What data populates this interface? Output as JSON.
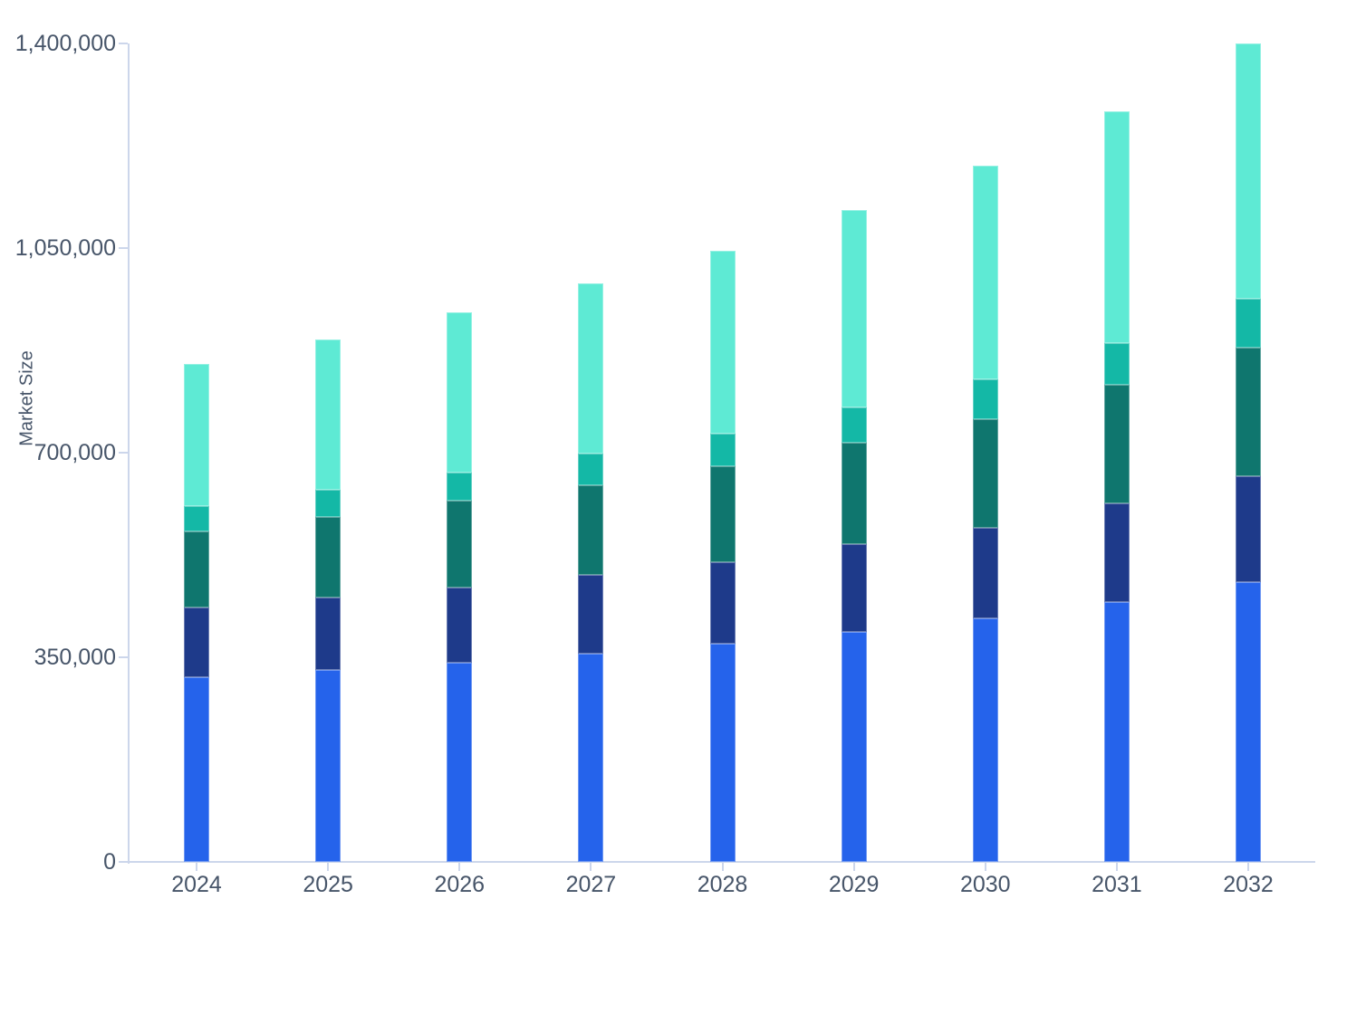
{
  "chart_data": {
    "type": "bar",
    "stacked": true,
    "title": "",
    "xlabel": "",
    "ylabel": "Market Size",
    "categories": [
      "2024",
      "2025",
      "2026",
      "2027",
      "2028",
      "2029",
      "2030",
      "2031",
      "2032"
    ],
    "series": [
      {
        "color": "#2563EB",
        "values": [
          316000,
          328000,
          341000,
          356000,
          373000,
          393000,
          416000,
          444000,
          478000
        ]
      },
      {
        "color": "#1E3A8A",
        "values": [
          119000,
          124000,
          128000,
          135000,
          139000,
          150000,
          156000,
          169000,
          182000
        ]
      },
      {
        "color": "#0F766E",
        "values": [
          131000,
          138000,
          149000,
          154000,
          164000,
          174000,
          186000,
          203000,
          220000
        ]
      },
      {
        "color": "#14B8A6",
        "values": [
          42000,
          46000,
          48000,
          54000,
          57000,
          61000,
          68000,
          72000,
          84000
        ]
      },
      {
        "color": "#5EEAD4",
        "values": [
          243000,
          257000,
          274000,
          291000,
          313000,
          337000,
          365000,
          396000,
          436000
        ]
      }
    ],
    "stack_totals": [
      851000,
      893000,
      940000,
      990000,
      1046000,
      1115000,
      1191000,
      1284000,
      1400000
    ],
    "ylim": [
      0,
      1400000
    ],
    "yticks": [
      {
        "value": 0,
        "label": "0"
      },
      {
        "value": 350000,
        "label": "350,000"
      },
      {
        "value": 700000,
        "label": "700,000"
      },
      {
        "value": 1050000,
        "label": "1,050,000"
      },
      {
        "value": 1400000,
        "label": "1,400,000"
      }
    ],
    "grid": false,
    "legend_position": "none",
    "colors": {
      "axis_line": "#ccd6eb",
      "tick_label": "#475569",
      "axis_title": "#475569",
      "background": "#ffffff"
    }
  }
}
